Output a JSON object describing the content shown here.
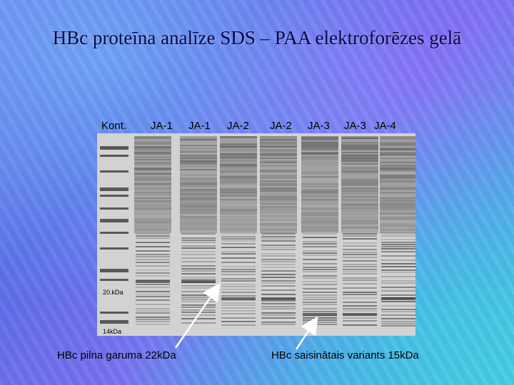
{
  "slide": {
    "title": "HBc proteīna analīze SDS – PAA elektroforēzes gelā",
    "lane_labels": [
      "Kont.",
      "JA-1",
      "JA-1",
      "JA-2",
      "JA-2",
      "JA-3",
      "JA-3",
      "JA-4"
    ],
    "markers": {
      "m20": "20.kDa",
      "m14": "14kDa"
    },
    "captions": {
      "left": "HBc pilna garuma 22kDa",
      "right": "HBc saisinātais variants 15kDa"
    }
  }
}
